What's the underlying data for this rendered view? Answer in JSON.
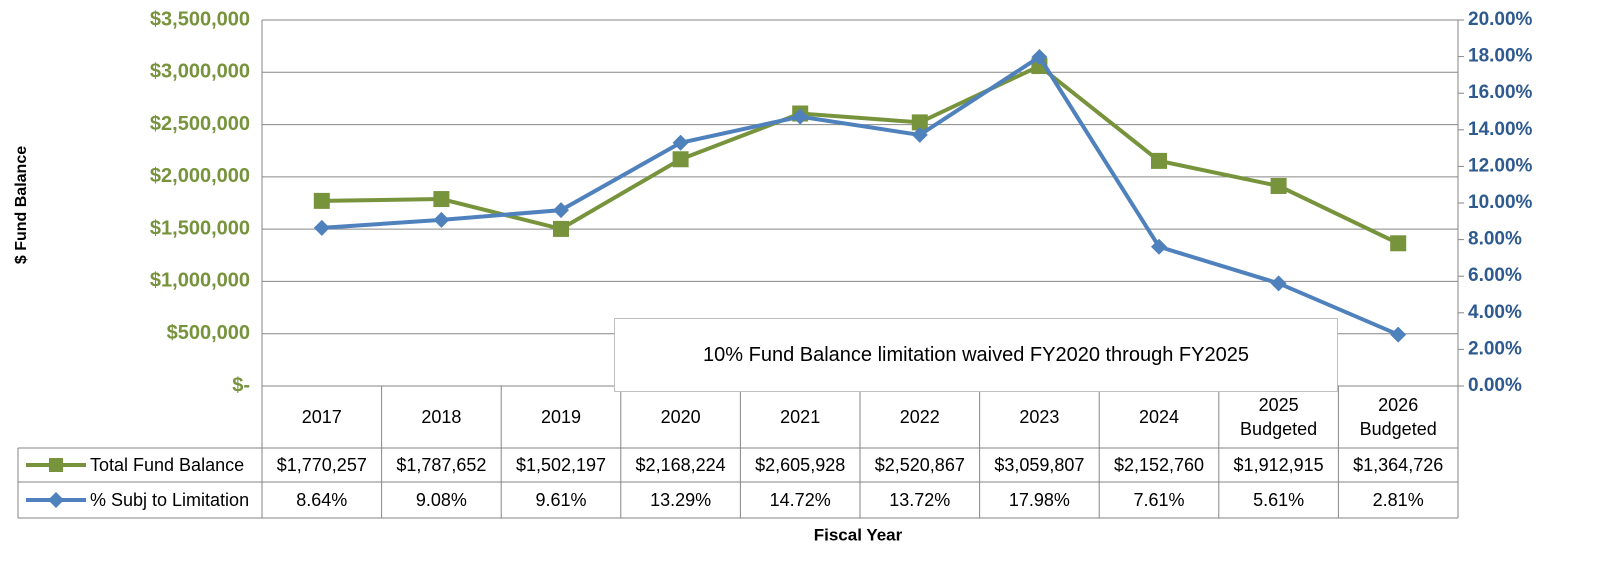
{
  "chart_data": {
    "type": "line",
    "annotation": "10% Fund Balance limitation waived FY2020 through FY2025",
    "y_label": "$ Fund Balance",
    "x_label": "Fiscal Year",
    "categories": [
      "2017",
      "2018",
      "2019",
      "2020",
      "2021",
      "2022",
      "2023",
      "2024",
      "2025 Budgeted",
      "2026 Budgeted"
    ],
    "series": [
      {
        "name": "Total Fund Balance",
        "color": "#77933c",
        "axis": "y",
        "values": [
          1770257,
          1787652,
          1502197,
          2168224,
          2605928,
          2520867,
          3059807,
          2152760,
          1912915,
          1364726
        ],
        "value_labels": [
          "$1,770,257",
          "$1,787,652",
          "$1,502,197",
          "$2,168,224",
          "$2,605,928",
          "$2,520,867",
          "$3,059,807",
          "$2,152,760",
          "$1,912,915",
          "$1,364,726"
        ]
      },
      {
        "name": "% Subj to Limitation",
        "color": "#4f81bd",
        "axis": "y2",
        "values": [
          8.64,
          9.08,
          9.61,
          13.29,
          14.72,
          13.72,
          17.98,
          7.61,
          5.61,
          2.81
        ],
        "value_labels": [
          "8.64%",
          "9.08%",
          "9.61%",
          "13.29%",
          "14.72%",
          "13.72%",
          "17.98%",
          "7.61%",
          "5.61%",
          "2.81%"
        ]
      }
    ],
    "ylim": [
      0,
      3500000
    ],
    "yticks": [
      {
        "value": 0,
        "label": "$-"
      },
      {
        "value": 500000,
        "label": "$500,000"
      },
      {
        "value": 1000000,
        "label": "$1,000,000"
      },
      {
        "value": 1500000,
        "label": "$1,500,000"
      },
      {
        "value": 2000000,
        "label": "$2,000,000"
      },
      {
        "value": 2500000,
        "label": "$2,500,000"
      },
      {
        "value": 3000000,
        "label": "$3,000,000"
      },
      {
        "value": 3500000,
        "label": "$3,500,000"
      }
    ],
    "y2lim": [
      0,
      20
    ],
    "y2ticks": [
      {
        "value": 0,
        "label": "0.00%"
      },
      {
        "value": 2,
        "label": "2.00%"
      },
      {
        "value": 4,
        "label": "4.00%"
      },
      {
        "value": 6,
        "label": "6.00%"
      },
      {
        "value": 8,
        "label": "8.00%"
      },
      {
        "value": 10,
        "label": "10.00%"
      },
      {
        "value": 12,
        "label": "12.00%"
      },
      {
        "value": 14,
        "label": "14.00%"
      },
      {
        "value": 16,
        "label": "16.00%"
      },
      {
        "value": 18,
        "label": "18.00%"
      },
      {
        "value": 20,
        "label": "20.00%"
      }
    ],
    "grid": true
  }
}
